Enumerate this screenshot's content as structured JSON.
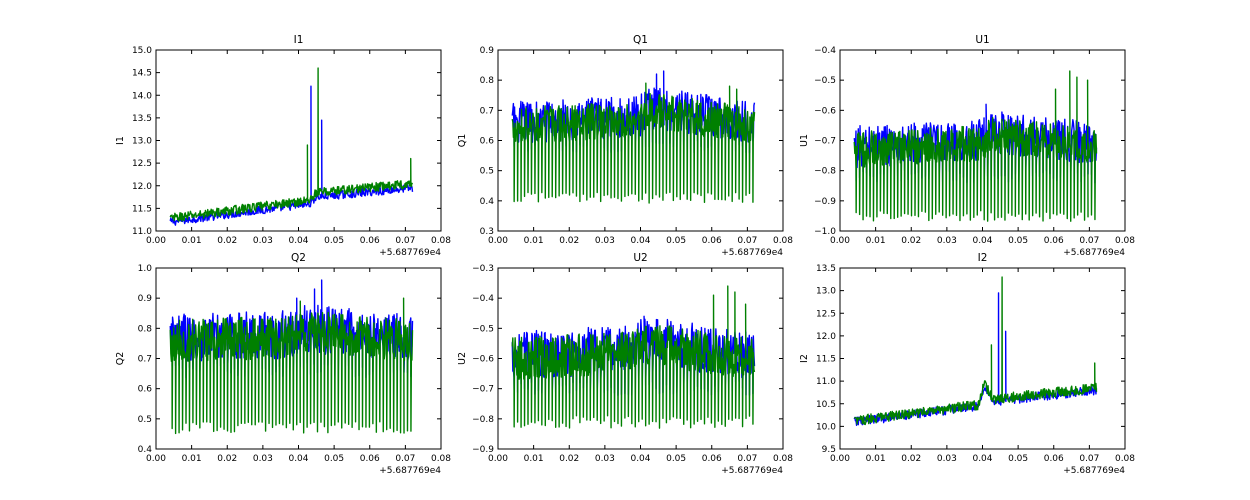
{
  "figure": {
    "background": "#ffffff"
  },
  "chart_data": [
    {
      "type": "line",
      "title": "I1",
      "xlabel": "",
      "ylabel": "I1",
      "xlim": [
        0.0,
        0.08
      ],
      "ylim": [
        11.0,
        15.0
      ],
      "xticks": [
        "0.00",
        "0.01",
        "0.02",
        "0.03",
        "0.04",
        "0.05",
        "0.06",
        "0.07",
        "0.08"
      ],
      "yticks": [
        "11.0",
        "11.5",
        "12.0",
        "12.5",
        "13.0",
        "13.5",
        "14.0",
        "14.5",
        "15.0"
      ],
      "offset_label": "+5.687769e4",
      "series": [
        {
          "name": "blue",
          "color": "#0000ff",
          "x_range": [
            0.004,
            0.072
          ],
          "trend": [
            [
              0.004,
              11.2
            ],
            [
              0.043,
              11.6
            ],
            [
              0.045,
              11.75
            ],
            [
              0.072,
              11.95
            ]
          ],
          "noise": 0.09,
          "dips": {
            "period": 0,
            "depth": 0
          },
          "spikes": [
            [
              0.0435,
              14.2
            ],
            [
              0.0465,
              13.45
            ]
          ]
        },
        {
          "name": "green",
          "color": "#008000",
          "x_range": [
            0.004,
            0.072
          ],
          "trend": [
            [
              0.004,
              11.28
            ],
            [
              0.043,
              11.68
            ],
            [
              0.045,
              11.85
            ],
            [
              0.072,
              12.05
            ]
          ],
          "noise": 0.1,
          "dips": {
            "period": 0,
            "depth": 0
          },
          "spikes": [
            [
              0.0425,
              12.9
            ],
            [
              0.0455,
              14.6
            ],
            [
              0.0715,
              12.6
            ]
          ]
        }
      ]
    },
    {
      "type": "line",
      "title": "Q1",
      "xlabel": "",
      "ylabel": "Q1",
      "xlim": [
        0.0,
        0.08
      ],
      "ylim": [
        0.3,
        0.9
      ],
      "xticks": [
        "0.00",
        "0.01",
        "0.02",
        "0.03",
        "0.04",
        "0.05",
        "0.06",
        "0.07",
        "0.08"
      ],
      "yticks": [
        "0.3",
        "0.4",
        "0.5",
        "0.6",
        "0.7",
        "0.8",
        "0.9"
      ],
      "offset_label": "+5.687769e4",
      "series": [
        {
          "name": "blue",
          "color": "#0000ff",
          "x_range": [
            0.004,
            0.072
          ],
          "trend": [
            [
              0.004,
              0.66
            ],
            [
              0.04,
              0.68
            ],
            [
              0.042,
              0.71
            ],
            [
              0.072,
              0.66
            ]
          ],
          "noise": 0.07,
          "dips": {
            "period": 0.002,
            "depth": 0.58
          },
          "spikes": [
            [
              0.0445,
              0.82
            ],
            [
              0.0465,
              0.83
            ]
          ]
        },
        {
          "name": "green",
          "color": "#008000",
          "x_range": [
            0.004,
            0.072
          ],
          "trend": [
            [
              0.004,
              0.65
            ],
            [
              0.04,
              0.67
            ],
            [
              0.042,
              0.7
            ],
            [
              0.072,
              0.65
            ]
          ],
          "noise": 0.06,
          "dips": {
            "period": 0.002,
            "depth": 0.41
          },
          "spikes": [
            [
              0.0415,
              0.79
            ],
            [
              0.065,
              0.78
            ],
            [
              0.067,
              0.77
            ]
          ]
        }
      ]
    },
    {
      "type": "line",
      "title": "U1",
      "xlabel": "",
      "ylabel": "U1",
      "xlim": [
        0.0,
        0.08
      ],
      "ylim": [
        -1.0,
        -0.4
      ],
      "xticks": [
        "0.00",
        "0.01",
        "0.02",
        "0.03",
        "0.04",
        "0.05",
        "0.06",
        "0.07",
        "0.08"
      ],
      "yticks": [
        "−1.0",
        "−0.9",
        "−0.8",
        "−0.7",
        "−0.6",
        "−0.5",
        "−0.4"
      ],
      "offset_label": "+5.687769e4",
      "series": [
        {
          "name": "blue",
          "color": "#0000ff",
          "x_range": [
            0.004,
            0.072
          ],
          "trend": [
            [
              0.004,
              -0.72
            ],
            [
              0.04,
              -0.7
            ],
            [
              0.042,
              -0.67
            ],
            [
              0.072,
              -0.71
            ]
          ],
          "noise": 0.07,
          "dips": {
            "period": 0.002,
            "depth": -0.82
          },
          "spikes": [
            [
              0.041,
              -0.58
            ]
          ]
        },
        {
          "name": "green",
          "color": "#008000",
          "x_range": [
            0.004,
            0.072
          ],
          "trend": [
            [
              0.004,
              -0.73
            ],
            [
              0.04,
              -0.71
            ],
            [
              0.042,
              -0.68
            ],
            [
              0.072,
              -0.72
            ]
          ],
          "noise": 0.06,
          "dips": {
            "period": 0.002,
            "depth": -0.95
          },
          "spikes": [
            [
              0.0645,
              -0.47
            ],
            [
              0.0665,
              -0.49
            ],
            [
              0.0695,
              -0.5
            ],
            [
              0.0605,
              -0.53
            ]
          ]
        }
      ]
    },
    {
      "type": "line",
      "title": "Q2",
      "xlabel": "",
      "ylabel": "Q2",
      "xlim": [
        0.0,
        0.08
      ],
      "ylim": [
        0.4,
        1.0
      ],
      "xticks": [
        "0.00",
        "0.01",
        "0.02",
        "0.03",
        "0.04",
        "0.05",
        "0.06",
        "0.07",
        "0.08"
      ],
      "yticks": [
        "0.4",
        "0.5",
        "0.6",
        "0.7",
        "0.8",
        "0.9",
        "1.0"
      ],
      "offset_label": "+5.687769e4",
      "series": [
        {
          "name": "blue",
          "color": "#0000ff",
          "x_range": [
            0.004,
            0.072
          ],
          "trend": [
            [
              0.004,
              0.77
            ],
            [
              0.038,
              0.78
            ],
            [
              0.041,
              0.8
            ],
            [
              0.072,
              0.77
            ]
          ],
          "noise": 0.08,
          "dips": {
            "period": 0.002,
            "depth": 0.66
          },
          "spikes": [
            [
              0.0395,
              0.9
            ],
            [
              0.0445,
              0.93
            ],
            [
              0.0465,
              0.96
            ]
          ]
        },
        {
          "name": "green",
          "color": "#008000",
          "x_range": [
            0.004,
            0.072
          ],
          "trend": [
            [
              0.004,
              0.76
            ],
            [
              0.038,
              0.77
            ],
            [
              0.041,
              0.79
            ],
            [
              0.072,
              0.76
            ]
          ],
          "noise": 0.07,
          "dips": {
            "period": 0.002,
            "depth": 0.47
          },
          "spikes": [
            [
              0.0405,
              0.89
            ],
            [
              0.0695,
              0.9
            ]
          ]
        }
      ]
    },
    {
      "type": "line",
      "title": "U2",
      "xlabel": "",
      "ylabel": "U2",
      "xlim": [
        0.0,
        0.08
      ],
      "ylim": [
        -0.9,
        -0.3
      ],
      "xticks": [
        "0.00",
        "0.01",
        "0.02",
        "0.03",
        "0.04",
        "0.05",
        "0.06",
        "0.07",
        "0.08"
      ],
      "yticks": [
        "−0.9",
        "−0.8",
        "−0.7",
        "−0.6",
        "−0.5",
        "−0.4",
        "−0.3"
      ],
      "offset_label": "+5.687769e4",
      "series": [
        {
          "name": "blue",
          "color": "#0000ff",
          "x_range": [
            0.004,
            0.072
          ],
          "trend": [
            [
              0.004,
              -0.59
            ],
            [
              0.038,
              -0.57
            ],
            [
              0.041,
              -0.54
            ],
            [
              0.072,
              -0.59
            ]
          ],
          "noise": 0.08,
          "dips": {
            "period": 0.002,
            "depth": -0.7
          },
          "spikes": [
            [
              0.041,
              -0.46
            ]
          ]
        },
        {
          "name": "green",
          "color": "#008000",
          "x_range": [
            0.004,
            0.072
          ],
          "trend": [
            [
              0.004,
              -0.6
            ],
            [
              0.038,
              -0.58
            ],
            [
              0.041,
              -0.55
            ],
            [
              0.072,
              -0.6
            ]
          ],
          "noise": 0.07,
          "dips": {
            "period": 0.002,
            "depth": -0.81
          },
          "spikes": [
            [
              0.0645,
              -0.36
            ],
            [
              0.0665,
              -0.38
            ],
            [
              0.0605,
              -0.39
            ],
            [
              0.0695,
              -0.42
            ]
          ]
        }
      ]
    },
    {
      "type": "line",
      "title": "I2",
      "xlabel": "",
      "ylabel": "I2",
      "xlim": [
        0.0,
        0.08
      ],
      "ylim": [
        9.5,
        13.5
      ],
      "xticks": [
        "0.00",
        "0.01",
        "0.02",
        "0.03",
        "0.04",
        "0.05",
        "0.06",
        "0.07",
        "0.08"
      ],
      "yticks": [
        "9.5",
        "10.0",
        "10.5",
        "11.0",
        "11.5",
        "12.0",
        "12.5",
        "13.0",
        "13.5"
      ],
      "offset_label": "+5.687769e4",
      "series": [
        {
          "name": "blue",
          "color": "#0000ff",
          "x_range": [
            0.004,
            0.072
          ],
          "trend": [
            [
              0.004,
              10.1
            ],
            [
              0.039,
              10.45
            ],
            [
              0.0405,
              10.9
            ],
            [
              0.043,
              10.55
            ],
            [
              0.072,
              10.8
            ]
          ],
          "noise": 0.1,
          "dips": {
            "period": 0,
            "depth": 0
          },
          "spikes": [
            [
              0.0445,
              12.95
            ],
            [
              0.0465,
              12.1
            ]
          ]
        },
        {
          "name": "green",
          "color": "#008000",
          "x_range": [
            0.004,
            0.072
          ],
          "trend": [
            [
              0.004,
              10.12
            ],
            [
              0.039,
              10.48
            ],
            [
              0.0405,
              10.95
            ],
            [
              0.043,
              10.6
            ],
            [
              0.072,
              10.85
            ]
          ],
          "noise": 0.11,
          "dips": {
            "period": 0,
            "depth": 0
          },
          "spikes": [
            [
              0.0425,
              11.8
            ],
            [
              0.0455,
              13.3
            ],
            [
              0.0715,
              11.4
            ]
          ]
        }
      ]
    }
  ]
}
